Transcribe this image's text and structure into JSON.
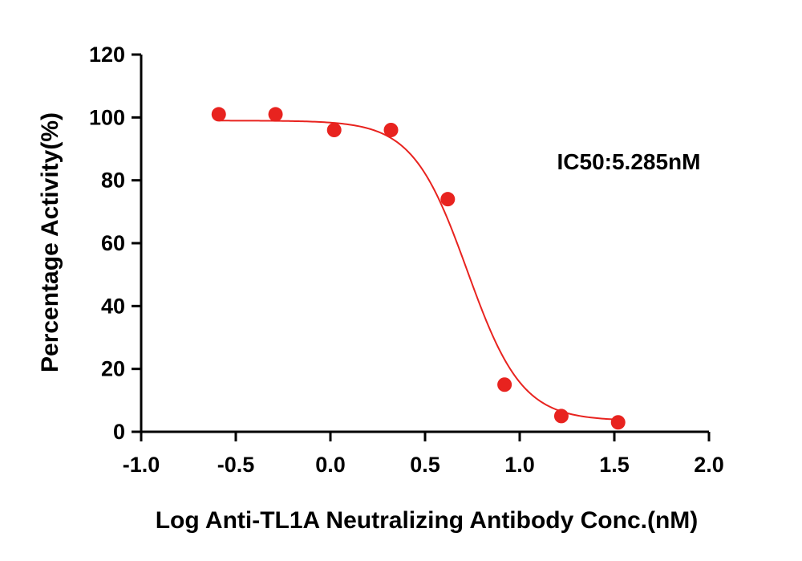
{
  "chart_data": {
    "type": "scatter",
    "xlabel": "Log Anti-TL1A Neutralizing Antibody Conc.(nM)",
    "ylabel": "Percentage Activity(%)",
    "xlim": [
      -1.0,
      2.0
    ],
    "ylim": [
      0,
      120
    ],
    "x_ticks": [
      -1.0,
      -0.5,
      0.0,
      0.5,
      1.0,
      1.5,
      2.0
    ],
    "x_tick_labels": [
      "-1.0",
      "-0.5",
      "0.0",
      "0.5",
      "1.0",
      "1.5",
      "2.0"
    ],
    "y_ticks": [
      0,
      20,
      40,
      60,
      80,
      100,
      120
    ],
    "y_tick_labels": [
      "0",
      "20",
      "40",
      "60",
      "80",
      "100",
      "120"
    ],
    "series": [
      {
        "color": "#e8231f",
        "points": [
          {
            "x": -0.59,
            "y": 101
          },
          {
            "x": -0.29,
            "y": 101
          },
          {
            "x": 0.02,
            "y": 96
          },
          {
            "x": 0.32,
            "y": 96
          },
          {
            "x": 0.62,
            "y": 74
          },
          {
            "x": 0.92,
            "y": 15
          },
          {
            "x": 1.22,
            "y": 5
          },
          {
            "x": 1.52,
            "y": 3
          }
        ],
        "fit": {
          "bottom": 3.5,
          "top": 99,
          "log_ic50": 0.723,
          "hill_slope": 3.0
        }
      }
    ],
    "annotations": [
      {
        "text": "IC50:5.285nM",
        "position": "upper-right"
      }
    ],
    "grid": false,
    "legend": "none"
  }
}
